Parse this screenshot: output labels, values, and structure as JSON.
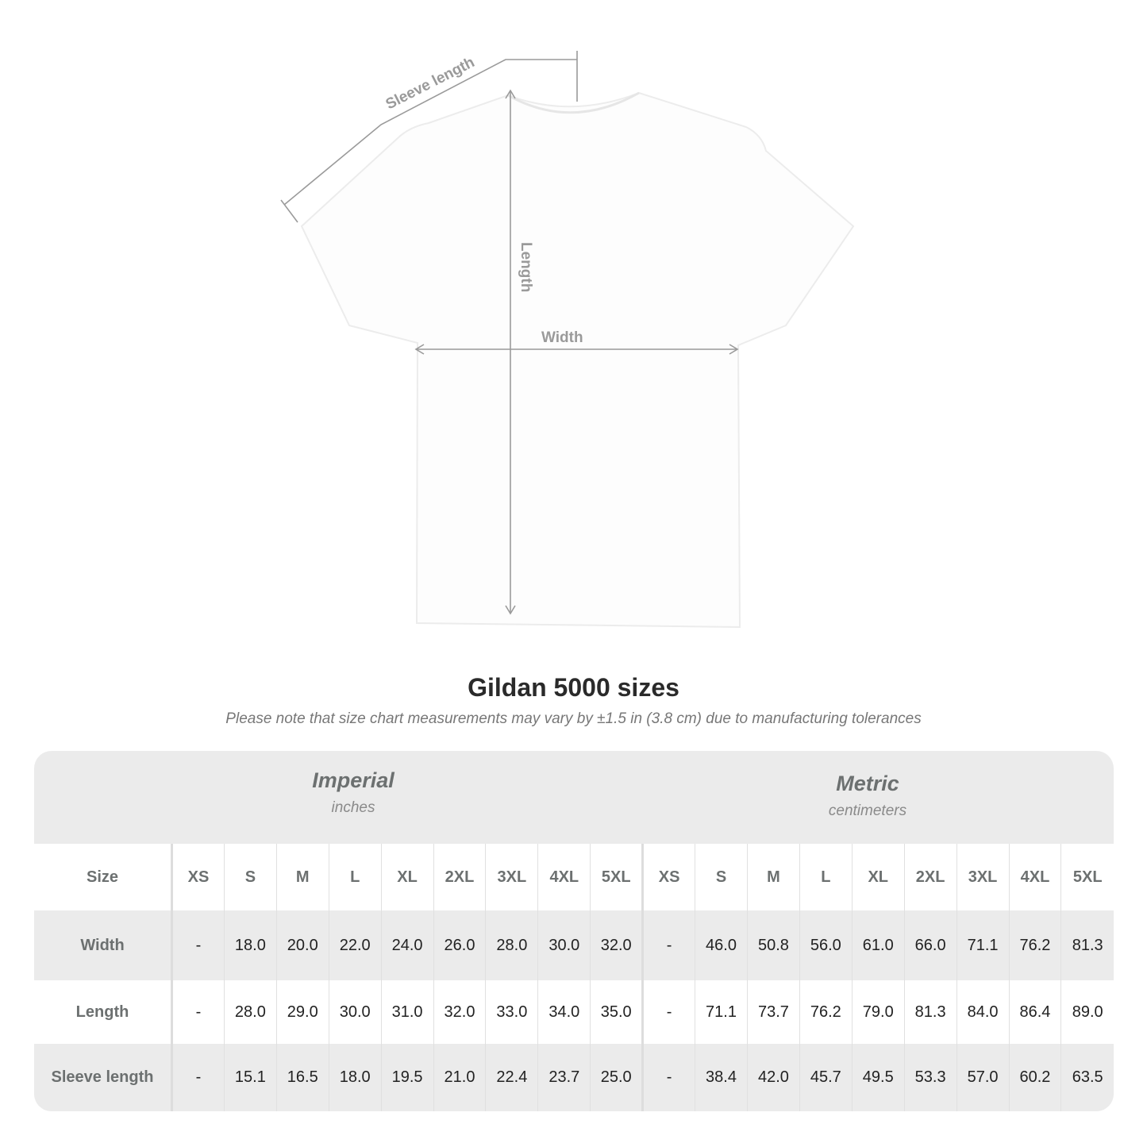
{
  "diagram": {
    "labels": {
      "sleeve": "Sleeve length",
      "length": "Length",
      "width": "Width"
    },
    "colors": {
      "shirt": "#ffffff",
      "measure_lines": "#9a9a9a"
    }
  },
  "title": "Gildan 5000 sizes",
  "subtitle": "Please note that size chart measurements may vary by ±1.5 in (3.8 cm) due to manufacturing tolerances",
  "table": {
    "imperial": {
      "name": "Imperial",
      "unit": "inches"
    },
    "metric": {
      "name": "Metric",
      "unit": "centimeters"
    },
    "size_label": "Size",
    "sizes": [
      "XS",
      "S",
      "M",
      "L",
      "XL",
      "2XL",
      "3XL",
      "4XL",
      "5XL"
    ],
    "rows": [
      {
        "label": "Width",
        "imperial": [
          "-",
          "18.0",
          "20.0",
          "22.0",
          "24.0",
          "26.0",
          "28.0",
          "30.0",
          "32.0"
        ],
        "metric": [
          "-",
          "46.0",
          "50.8",
          "56.0",
          "61.0",
          "66.0",
          "71.1",
          "76.2",
          "81.3"
        ]
      },
      {
        "label": "Length",
        "imperial": [
          "-",
          "28.0",
          "29.0",
          "30.0",
          "31.0",
          "32.0",
          "33.0",
          "34.0",
          "35.0"
        ],
        "metric": [
          "-",
          "71.1",
          "73.7",
          "76.2",
          "79.0",
          "81.3",
          "84.0",
          "86.4",
          "89.0"
        ]
      },
      {
        "label": "Sleeve length",
        "imperial": [
          "-",
          "15.1",
          "16.5",
          "18.0",
          "19.5",
          "21.0",
          "22.4",
          "23.7",
          "25.0"
        ],
        "metric": [
          "-",
          "38.4",
          "42.0",
          "45.7",
          "49.5",
          "53.3",
          "57.0",
          "60.2",
          "63.5"
        ]
      }
    ]
  }
}
